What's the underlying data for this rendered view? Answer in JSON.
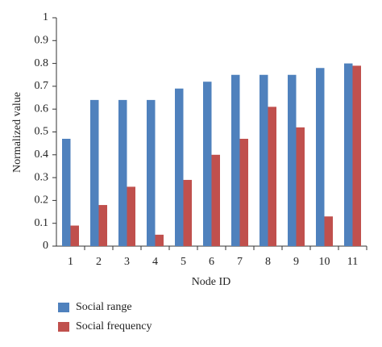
{
  "chart_data": {
    "type": "bar",
    "x_label": "Node ID",
    "y_label": "Normalized value",
    "categories": [
      "1",
      "2",
      "3",
      "4",
      "5",
      "6",
      "7",
      "8",
      "9",
      "10",
      "11"
    ],
    "series": [
      {
        "name": "Social range",
        "color": "#4f81bd",
        "values": [
          0.47,
          0.64,
          0.64,
          0.64,
          0.69,
          0.72,
          0.75,
          0.75,
          0.75,
          0.78,
          0.8
        ]
      },
      {
        "name": "Social frequency",
        "color": "#c0504d",
        "values": [
          0.09,
          0.18,
          0.26,
          0.05,
          0.29,
          0.4,
          0.47,
          0.61,
          0.52,
          0.13,
          0.79
        ]
      }
    ],
    "ylim": [
      0,
      1
    ],
    "yticks": [
      0,
      0.1,
      0.2,
      0.3,
      0.4,
      0.5,
      0.6,
      0.7,
      0.8,
      0.9,
      1
    ],
    "grid": false
  }
}
